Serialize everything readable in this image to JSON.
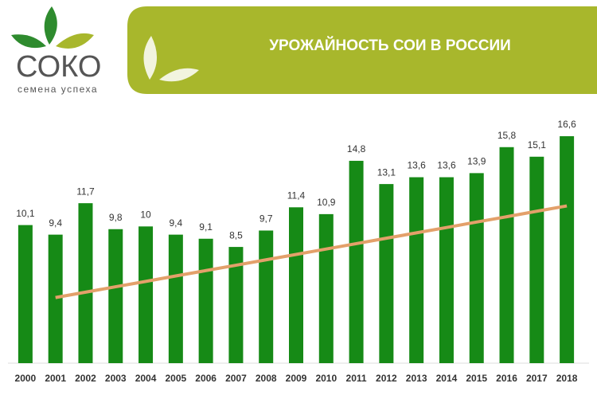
{
  "logo": {
    "name": "СОКО",
    "tagline": "семена успеха"
  },
  "chart_data": {
    "type": "bar",
    "title": "УРОЖАЙНОСТЬ СОИ В РОССИИ",
    "categories": [
      "2000",
      "2001",
      "2002",
      "2003",
      "2004",
      "2005",
      "2006",
      "2007",
      "2008",
      "2009",
      "2010",
      "2011",
      "2012",
      "2013",
      "2014",
      "2015",
      "2016",
      "2017",
      "2018"
    ],
    "values": [
      10.1,
      9.4,
      11.7,
      9.8,
      10,
      9.4,
      9.1,
      8.5,
      9.7,
      11.4,
      10.9,
      14.8,
      13.1,
      13.6,
      13.6,
      13.9,
      15.8,
      15.1,
      16.6
    ],
    "value_labels": [
      "10,1",
      "9,4",
      "11,7",
      "9,8",
      "10",
      "9,4",
      "9,1",
      "8,5",
      "9,7",
      "11,4",
      "10,9",
      "14,8",
      "13,1",
      "13,6",
      "13,6",
      "13,9",
      "15,8",
      "15,1",
      "16,6"
    ],
    "color": "#168a16",
    "trend": {
      "color": "#e3a06a",
      "values": [
        null,
        4.8,
        5.19,
        5.59,
        5.98,
        6.38,
        6.77,
        7.16,
        7.56,
        7.95,
        8.35,
        8.74,
        9.14,
        9.53,
        9.92,
        10.32,
        10.71,
        11.11,
        11.5
      ]
    },
    "ylim": [
      0,
      18
    ]
  }
}
